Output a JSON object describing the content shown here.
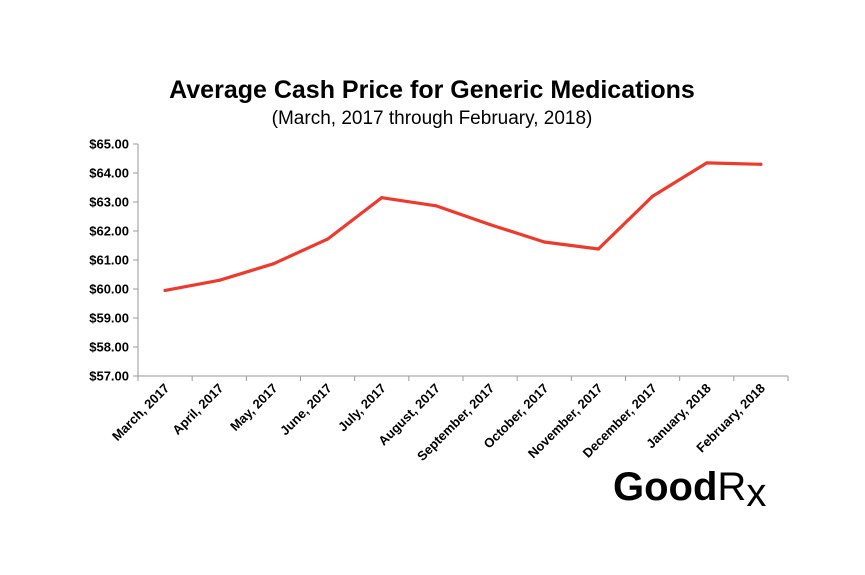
{
  "chart_data": {
    "type": "line",
    "title": "Average Cash Price for Generic Medications",
    "subtitle": "(March, 2017 through February, 2018)",
    "xlabel": "",
    "ylabel": "",
    "categories": [
      "March, 2017",
      "April, 2017",
      "May, 2017",
      "June, 2017",
      "July, 2017",
      "August, 2017",
      "September, 2017",
      "October, 2017",
      "November, 2017",
      "December, 2017",
      "January, 2018",
      "February, 2018"
    ],
    "series": [
      {
        "name": "Average Cash Price",
        "values": [
          59.95,
          60.3,
          60.87,
          61.72,
          63.15,
          62.87,
          62.22,
          61.62,
          61.38,
          63.2,
          64.35,
          64.3
        ],
        "color": "#ee3a2c"
      }
    ],
    "ylim": [
      57,
      65
    ],
    "yticks": [
      57,
      58,
      59,
      60,
      61,
      62,
      63,
      64,
      65
    ],
    "ytick_labels": [
      "$57.00",
      "$58.00",
      "$59.00",
      "$60.00",
      "$61.00",
      "$62.00",
      "$63.00",
      "$64.00",
      "$65.00"
    ],
    "grid": false,
    "legend": "none"
  },
  "brand": {
    "logo_main": "Good",
    "logo_r": "R",
    "logo_x": "x",
    "logo_text": "GoodRx"
  }
}
